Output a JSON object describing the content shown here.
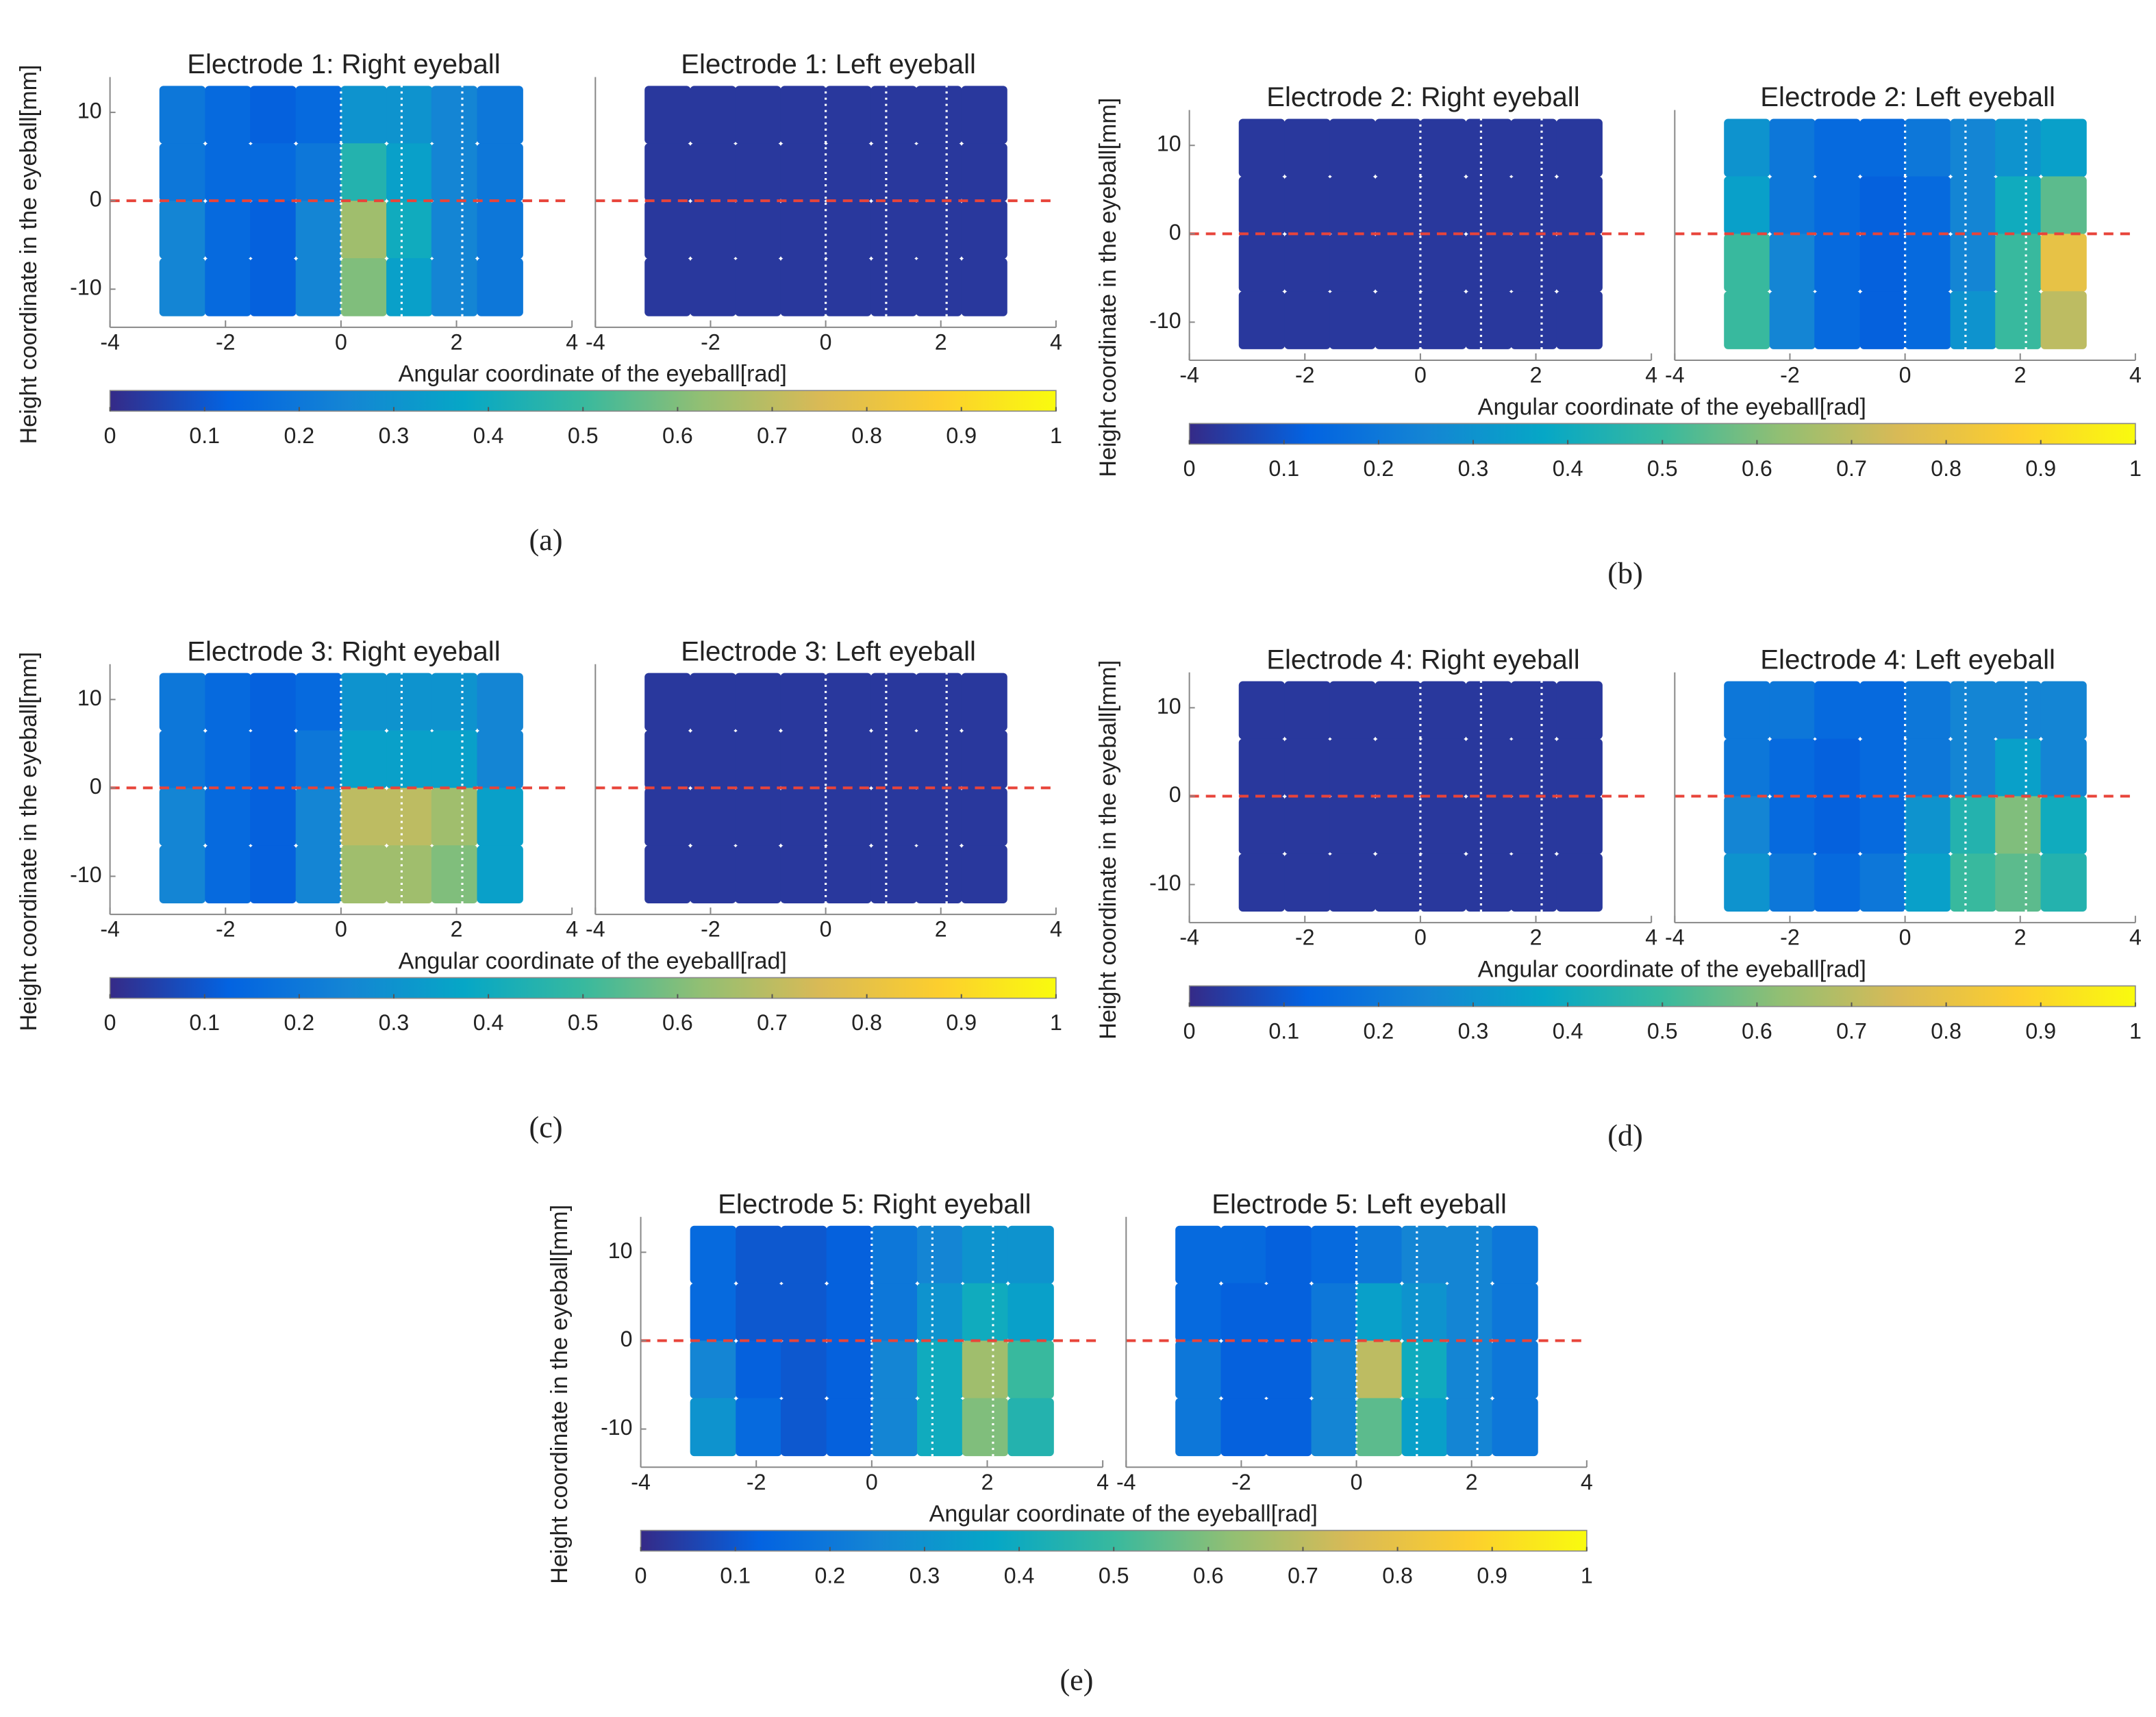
{
  "chart_data": [
    {
      "type": "heatmap",
      "label": "(a)",
      "ylabel": "Height coordinate in the eyeball[mm]",
      "xlabel": "Angular coordinate of the eyeball[rad]",
      "xlim": [
        -4,
        4
      ],
      "ylim": [
        -14,
        14
      ],
      "xticks": [
        -4,
        -2,
        0,
        2,
        4
      ],
      "yticks": [
        -10,
        0,
        10
      ],
      "x": [
        -2.75,
        -1.96,
        -1.18,
        -0.39,
        0.39,
        1.18,
        1.96,
        2.75
      ],
      "y": [
        9.75,
        3.25,
        -3.25,
        -9.75
      ],
      "vlines": [
        0,
        1.05,
        2.1
      ],
      "hline": 0,
      "colorbar": {
        "lim": [
          0,
          1
        ],
        "ticks": [
          0,
          0.1,
          0.2,
          0.3,
          0.4,
          0.5,
          0.6,
          0.7,
          0.8,
          0.9,
          1
        ]
      },
      "colormap": [
        "#352a87",
        "#0363e1",
        "#1485d4",
        "#06a7c6",
        "#38b99e",
        "#92bf73",
        "#d9ba56",
        "#fcce2e",
        "#f9fb0e"
      ],
      "subplots": [
        {
          "title": "Electrode 1: Right eyeball",
          "values": [
            [
              0.2,
              0.15,
              0.12,
              0.15,
              0.3,
              0.3,
              0.25,
              0.2
            ],
            [
              0.2,
              0.15,
              0.15,
              0.2,
              0.45,
              0.35,
              0.25,
              0.2
            ],
            [
              0.25,
              0.15,
              0.12,
              0.25,
              0.65,
              0.4,
              0.25,
              0.2
            ],
            [
              0.25,
              0.15,
              0.12,
              0.25,
              0.6,
              0.35,
              0.25,
              0.2
            ]
          ]
        },
        {
          "title": "Electrode 1: Left eyeball",
          "values": [
            [
              0.03,
              0.03,
              0.03,
              0.03,
              0.03,
              0.03,
              0.03,
              0.03
            ],
            [
              0.03,
              0.03,
              0.03,
              0.03,
              0.03,
              0.03,
              0.03,
              0.03
            ],
            [
              0.03,
              0.03,
              0.03,
              0.03,
              0.03,
              0.03,
              0.03,
              0.03
            ],
            [
              0.03,
              0.03,
              0.03,
              0.03,
              0.03,
              0.03,
              0.03,
              0.03
            ]
          ]
        }
      ]
    },
    {
      "type": "heatmap",
      "label": "(b)",
      "ylabel": "Height coordinate in the eyeball[mm]",
      "xlabel": "Angular coordinate of the eyeball[rad]",
      "xlim": [
        -4,
        4
      ],
      "ylim": [
        -14,
        14
      ],
      "xticks": [
        -4,
        -2,
        0,
        2,
        4
      ],
      "yticks": [
        -10,
        0,
        10
      ],
      "x": [
        -2.75,
        -1.96,
        -1.18,
        -0.39,
        0.39,
        1.18,
        1.96,
        2.75
      ],
      "y": [
        9.75,
        3.25,
        -3.25,
        -9.75
      ],
      "vlines": [
        0,
        1.05,
        2.1
      ],
      "hline": 0,
      "colorbar": {
        "lim": [
          0,
          1
        ],
        "ticks": [
          0,
          0.1,
          0.2,
          0.3,
          0.4,
          0.5,
          0.6,
          0.7,
          0.8,
          0.9,
          1
        ]
      },
      "colormap": [
        "#352a87",
        "#0363e1",
        "#1485d4",
        "#06a7c6",
        "#38b99e",
        "#92bf73",
        "#d9ba56",
        "#fcce2e",
        "#f9fb0e"
      ],
      "subplots": [
        {
          "title": "Electrode 2: Right eyeball",
          "values": [
            [
              0.03,
              0.03,
              0.03,
              0.03,
              0.03,
              0.03,
              0.03,
              0.03
            ],
            [
              0.03,
              0.03,
              0.03,
              0.03,
              0.03,
              0.03,
              0.03,
              0.03
            ],
            [
              0.03,
              0.03,
              0.03,
              0.03,
              0.03,
              0.03,
              0.03,
              0.03
            ],
            [
              0.03,
              0.03,
              0.03,
              0.03,
              0.03,
              0.03,
              0.03,
              0.03
            ]
          ]
        },
        {
          "title": "Electrode 2: Left eyeball",
          "values": [
            [
              0.3,
              0.2,
              0.15,
              0.15,
              0.2,
              0.25,
              0.3,
              0.35
            ],
            [
              0.35,
              0.2,
              0.15,
              0.12,
              0.15,
              0.25,
              0.4,
              0.55
            ],
            [
              0.5,
              0.25,
              0.15,
              0.12,
              0.15,
              0.25,
              0.5,
              0.8
            ],
            [
              0.5,
              0.25,
              0.15,
              0.12,
              0.15,
              0.3,
              0.5,
              0.7
            ]
          ]
        }
      ]
    },
    {
      "type": "heatmap",
      "label": "(c)",
      "ylabel": "Height coordinate in the eyeball[mm]",
      "xlabel": "Angular coordinate of the eyeball[rad]",
      "xlim": [
        -4,
        4
      ],
      "ylim": [
        -14,
        14
      ],
      "xticks": [
        -4,
        -2,
        0,
        2,
        4
      ],
      "yticks": [
        -10,
        0,
        10
      ],
      "x": [
        -2.75,
        -1.96,
        -1.18,
        -0.39,
        0.39,
        1.18,
        1.96,
        2.75
      ],
      "y": [
        9.75,
        3.25,
        -3.25,
        -9.75
      ],
      "vlines": [
        0,
        1.05,
        2.1
      ],
      "hline": 0,
      "colorbar": {
        "lim": [
          0,
          1
        ],
        "ticks": [
          0,
          0.1,
          0.2,
          0.3,
          0.4,
          0.5,
          0.6,
          0.7,
          0.8,
          0.9,
          1
        ]
      },
      "colormap": [
        "#352a87",
        "#0363e1",
        "#1485d4",
        "#06a7c6",
        "#38b99e",
        "#92bf73",
        "#d9ba56",
        "#fcce2e",
        "#f9fb0e"
      ],
      "subplots": [
        {
          "title": "Electrode 3: Right eyeball",
          "values": [
            [
              0.2,
              0.15,
              0.12,
              0.15,
              0.3,
              0.3,
              0.3,
              0.25
            ],
            [
              0.2,
              0.15,
              0.12,
              0.2,
              0.35,
              0.35,
              0.35,
              0.25
            ],
            [
              0.25,
              0.15,
              0.12,
              0.25,
              0.7,
              0.7,
              0.65,
              0.35
            ],
            [
              0.25,
              0.15,
              0.12,
              0.25,
              0.65,
              0.65,
              0.6,
              0.35
            ]
          ]
        },
        {
          "title": "Electrode 3: Left eyeball",
          "values": [
            [
              0.03,
              0.03,
              0.03,
              0.03,
              0.03,
              0.03,
              0.03,
              0.03
            ],
            [
              0.03,
              0.03,
              0.03,
              0.03,
              0.03,
              0.03,
              0.03,
              0.03
            ],
            [
              0.03,
              0.03,
              0.03,
              0.03,
              0.03,
              0.03,
              0.03,
              0.03
            ],
            [
              0.03,
              0.03,
              0.03,
              0.03,
              0.03,
              0.03,
              0.03,
              0.03
            ]
          ]
        }
      ]
    },
    {
      "type": "heatmap",
      "label": "(d)",
      "ylabel": "Height coordinate in the eyeball[mm]",
      "xlabel": "Angular coordinate of the eyeball[rad]",
      "xlim": [
        -4,
        4
      ],
      "ylim": [
        -14,
        14
      ],
      "xticks": [
        -4,
        -2,
        0,
        2,
        4
      ],
      "yticks": [
        -10,
        0,
        10
      ],
      "x": [
        -2.75,
        -1.96,
        -1.18,
        -0.39,
        0.39,
        1.18,
        1.96,
        2.75
      ],
      "y": [
        9.75,
        3.25,
        -3.25,
        -9.75
      ],
      "vlines": [
        0,
        1.05,
        2.1
      ],
      "hline": 0,
      "colorbar": {
        "lim": [
          0,
          1
        ],
        "ticks": [
          0,
          0.1,
          0.2,
          0.3,
          0.4,
          0.5,
          0.6,
          0.7,
          0.8,
          0.9,
          1
        ]
      },
      "colormap": [
        "#352a87",
        "#0363e1",
        "#1485d4",
        "#06a7c6",
        "#38b99e",
        "#92bf73",
        "#d9ba56",
        "#fcce2e",
        "#f9fb0e"
      ],
      "subplots": [
        {
          "title": "Electrode 4: Right eyeball",
          "values": [
            [
              0.03,
              0.03,
              0.03,
              0.03,
              0.03,
              0.03,
              0.03,
              0.03
            ],
            [
              0.03,
              0.03,
              0.03,
              0.03,
              0.03,
              0.03,
              0.03,
              0.03
            ],
            [
              0.03,
              0.03,
              0.03,
              0.03,
              0.03,
              0.03,
              0.03,
              0.03
            ],
            [
              0.03,
              0.03,
              0.03,
              0.03,
              0.03,
              0.03,
              0.03,
              0.03
            ]
          ]
        },
        {
          "title": "Electrode 4: Left eyeball",
          "values": [
            [
              0.2,
              0.2,
              0.15,
              0.15,
              0.2,
              0.25,
              0.25,
              0.25
            ],
            [
              0.2,
              0.15,
              0.12,
              0.15,
              0.2,
              0.25,
              0.35,
              0.25
            ],
            [
              0.25,
              0.15,
              0.12,
              0.15,
              0.3,
              0.45,
              0.6,
              0.4
            ],
            [
              0.3,
              0.2,
              0.15,
              0.2,
              0.35,
              0.5,
              0.55,
              0.45
            ]
          ]
        }
      ]
    },
    {
      "type": "heatmap",
      "label": "(e)",
      "ylabel": "Height coordinate in the eyeball[mm]",
      "xlabel": "Angular coordinate of the eyeball[rad]",
      "xlim": [
        -4,
        4
      ],
      "ylim": [
        -14,
        14
      ],
      "xticks": [
        -4,
        -2,
        0,
        2,
        4
      ],
      "yticks": [
        -10,
        0,
        10
      ],
      "x": [
        -2.75,
        -1.96,
        -1.18,
        -0.39,
        0.39,
        1.18,
        1.96,
        2.75
      ],
      "y": [
        9.75,
        3.25,
        -3.25,
        -9.75
      ],
      "vlines": [
        0,
        1.05,
        2.1
      ],
      "hline": 0,
      "colorbar": {
        "lim": [
          0,
          1
        ],
        "ticks": [
          0,
          0.1,
          0.2,
          0.3,
          0.4,
          0.5,
          0.6,
          0.7,
          0.8,
          0.9,
          1
        ]
      },
      "colormap": [
        "#352a87",
        "#0363e1",
        "#1485d4",
        "#06a7c6",
        "#38b99e",
        "#92bf73",
        "#d9ba56",
        "#fcce2e",
        "#f9fb0e"
      ],
      "subplots": [
        {
          "title": "Electrode 5: Right eyeball",
          "values": [
            [
              0.15,
              0.1,
              0.1,
              0.12,
              0.2,
              0.25,
              0.3,
              0.3
            ],
            [
              0.15,
              0.1,
              0.1,
              0.12,
              0.2,
              0.3,
              0.4,
              0.35
            ],
            [
              0.25,
              0.12,
              0.1,
              0.12,
              0.25,
              0.4,
              0.65,
              0.5
            ],
            [
              0.3,
              0.15,
              0.1,
              0.12,
              0.25,
              0.4,
              0.6,
              0.45
            ]
          ]
        },
        {
          "title": "Electrode 5: Left eyeball",
          "values": [
            [
              0.15,
              0.15,
              0.12,
              0.15,
              0.2,
              0.25,
              0.25,
              0.2
            ],
            [
              0.15,
              0.12,
              0.12,
              0.2,
              0.35,
              0.3,
              0.25,
              0.2
            ],
            [
              0.2,
              0.12,
              0.12,
              0.25,
              0.7,
              0.4,
              0.25,
              0.2
            ],
            [
              0.2,
              0.12,
              0.12,
              0.25,
              0.55,
              0.35,
              0.25,
              0.2
            ]
          ]
        }
      ]
    }
  ]
}
